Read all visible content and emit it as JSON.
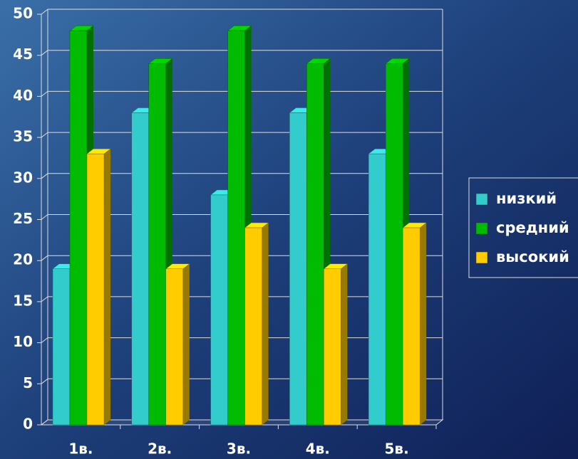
{
  "chart_data": {
    "type": "bar3d",
    "categories": [
      "1в.",
      "2в.",
      "3в.",
      "4в.",
      "5в."
    ],
    "series": [
      {
        "name": "низкий",
        "color": "#33cccc",
        "values": [
          19,
          38,
          28,
          38,
          33
        ]
      },
      {
        "name": "средний",
        "color": "#00bb00",
        "values": [
          48,
          44,
          48,
          44,
          44
        ]
      },
      {
        "name": "высокий",
        "color": "#ffcc00",
        "values": [
          33,
          19,
          24,
          19,
          24
        ]
      }
    ],
    "ylim": [
      0,
      50
    ],
    "yticks": [
      0,
      5,
      10,
      15,
      20,
      25,
      30,
      35,
      40,
      45,
      50
    ],
    "grid": true,
    "legend": "right"
  }
}
